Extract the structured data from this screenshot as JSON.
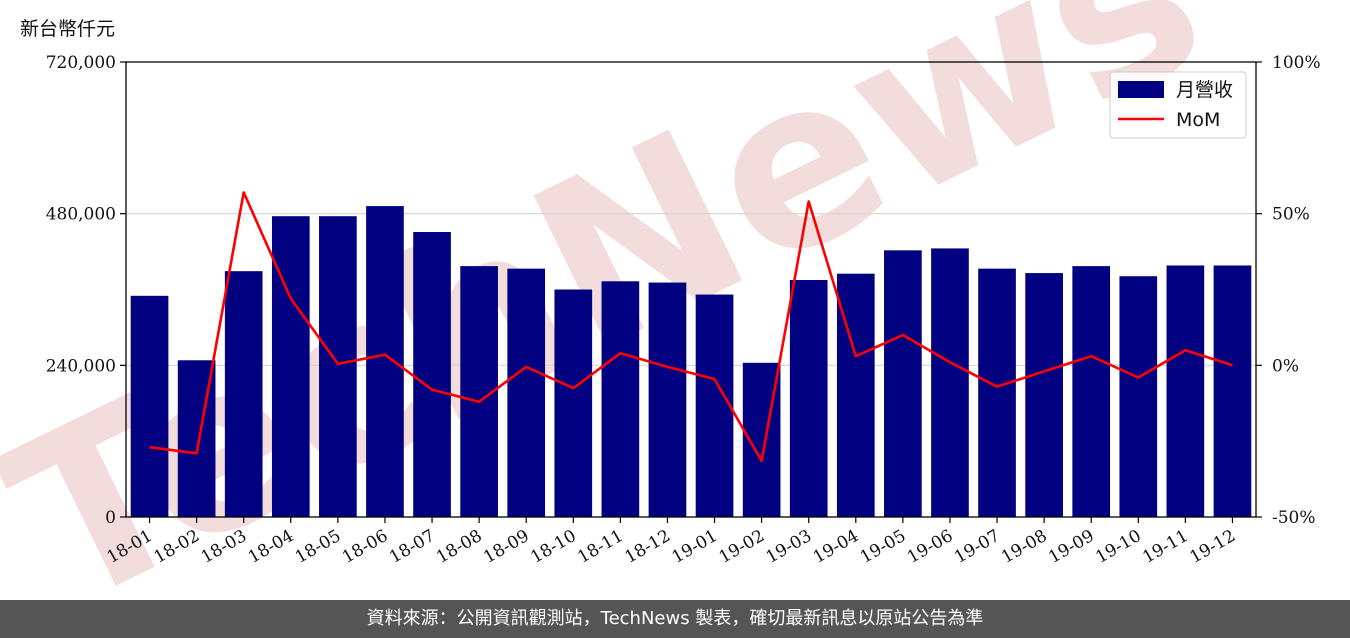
{
  "unit_label": "新台幣仟元",
  "watermark": "TechNews",
  "footer_text": "資料來源：公開資訊觀測站，TechNews 製表，確切最新訊息以原站公告為準",
  "colors": {
    "bar": "#000080",
    "line": "#ff0000",
    "watermark": "#f2dcdc",
    "footer_bg": "#555555"
  },
  "chart_data": {
    "type": "bar",
    "categories": [
      "18-01",
      "18-02",
      "18-03",
      "18-04",
      "18-05",
      "18-06",
      "18-07",
      "18-08",
      "18-09",
      "18-10",
      "18-11",
      "18-12",
      "19-01",
      "19-02",
      "19-03",
      "19-04",
      "19-05",
      "19-06",
      "19-07",
      "19-08",
      "19-09",
      "19-10",
      "19-11",
      "19-12"
    ],
    "series": [
      {
        "name": "月營收",
        "type": "bar",
        "axis": "left",
        "values": [
          350000,
          248000,
          389000,
          476000,
          476000,
          492000,
          451000,
          397000,
          393000,
          360000,
          373000,
          371000,
          352000,
          244000,
          375000,
          385000,
          422000,
          425000,
          393000,
          386000,
          397000,
          381000,
          398000,
          398000
        ]
      },
      {
        "name": "MoM",
        "type": "line",
        "axis": "right",
        "unit": "%",
        "values": [
          -27,
          -29,
          57,
          22,
          0.5,
          3.5,
          -8,
          -12,
          -0.5,
          -7.5,
          4,
          -0.5,
          -4.5,
          -31.5,
          54,
          3,
          10,
          1,
          -7,
          -2,
          3,
          -4,
          5,
          0
        ]
      }
    ],
    "yticks_left": [
      "0",
      "240,000",
      "480,000",
      "720,000"
    ],
    "ylim_left": [
      0,
      720000
    ],
    "yticks_right": [
      "-50%",
      "0%",
      "50%",
      "100%"
    ],
    "ylim_right": [
      -50,
      100
    ],
    "grid": "horizontal",
    "legend_position": "top-right"
  }
}
